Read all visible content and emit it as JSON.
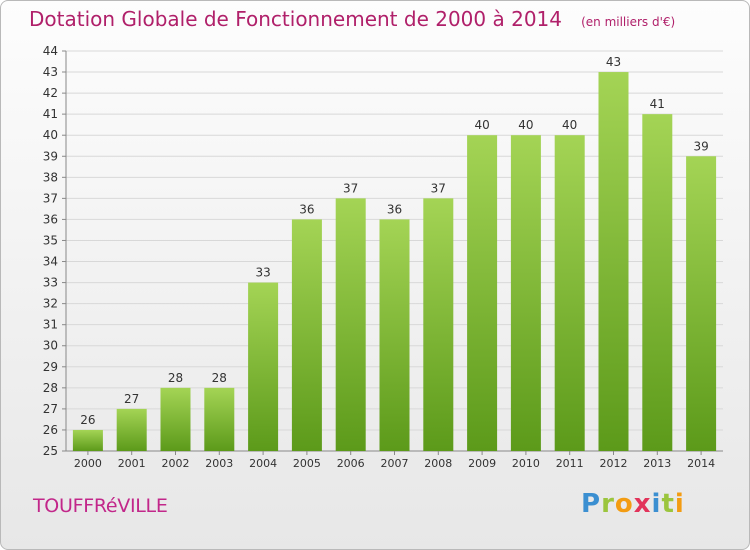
{
  "header": {
    "title": "Dotation Globale de Fonctionnement de 2000 à 2014",
    "unit": "(en milliers d'€)"
  },
  "footer": {
    "commune": "TOUFFRéVILLE",
    "logo": "Proxiti"
  },
  "colors": {
    "title": "#b0206a",
    "bar_top": "#a4d455",
    "bar_bottom": "#5c9a1a",
    "grid": "#d8d8d8"
  },
  "chart_data": {
    "type": "bar",
    "categories": [
      "2000",
      "2001",
      "2002",
      "2003",
      "2004",
      "2005",
      "2006",
      "2007",
      "2008",
      "2009",
      "2010",
      "2011",
      "2012",
      "2013",
      "2014"
    ],
    "values": [
      26,
      27,
      28,
      28,
      33,
      36,
      37,
      36,
      37,
      40,
      40,
      40,
      43,
      41,
      39
    ],
    "ylim": [
      25,
      44
    ],
    "yticks": [
      25,
      26,
      27,
      28,
      29,
      30,
      31,
      32,
      33,
      34,
      35,
      36,
      37,
      38,
      39,
      40,
      41,
      42,
      43,
      44
    ],
    "grid": true,
    "data_labels": true
  }
}
